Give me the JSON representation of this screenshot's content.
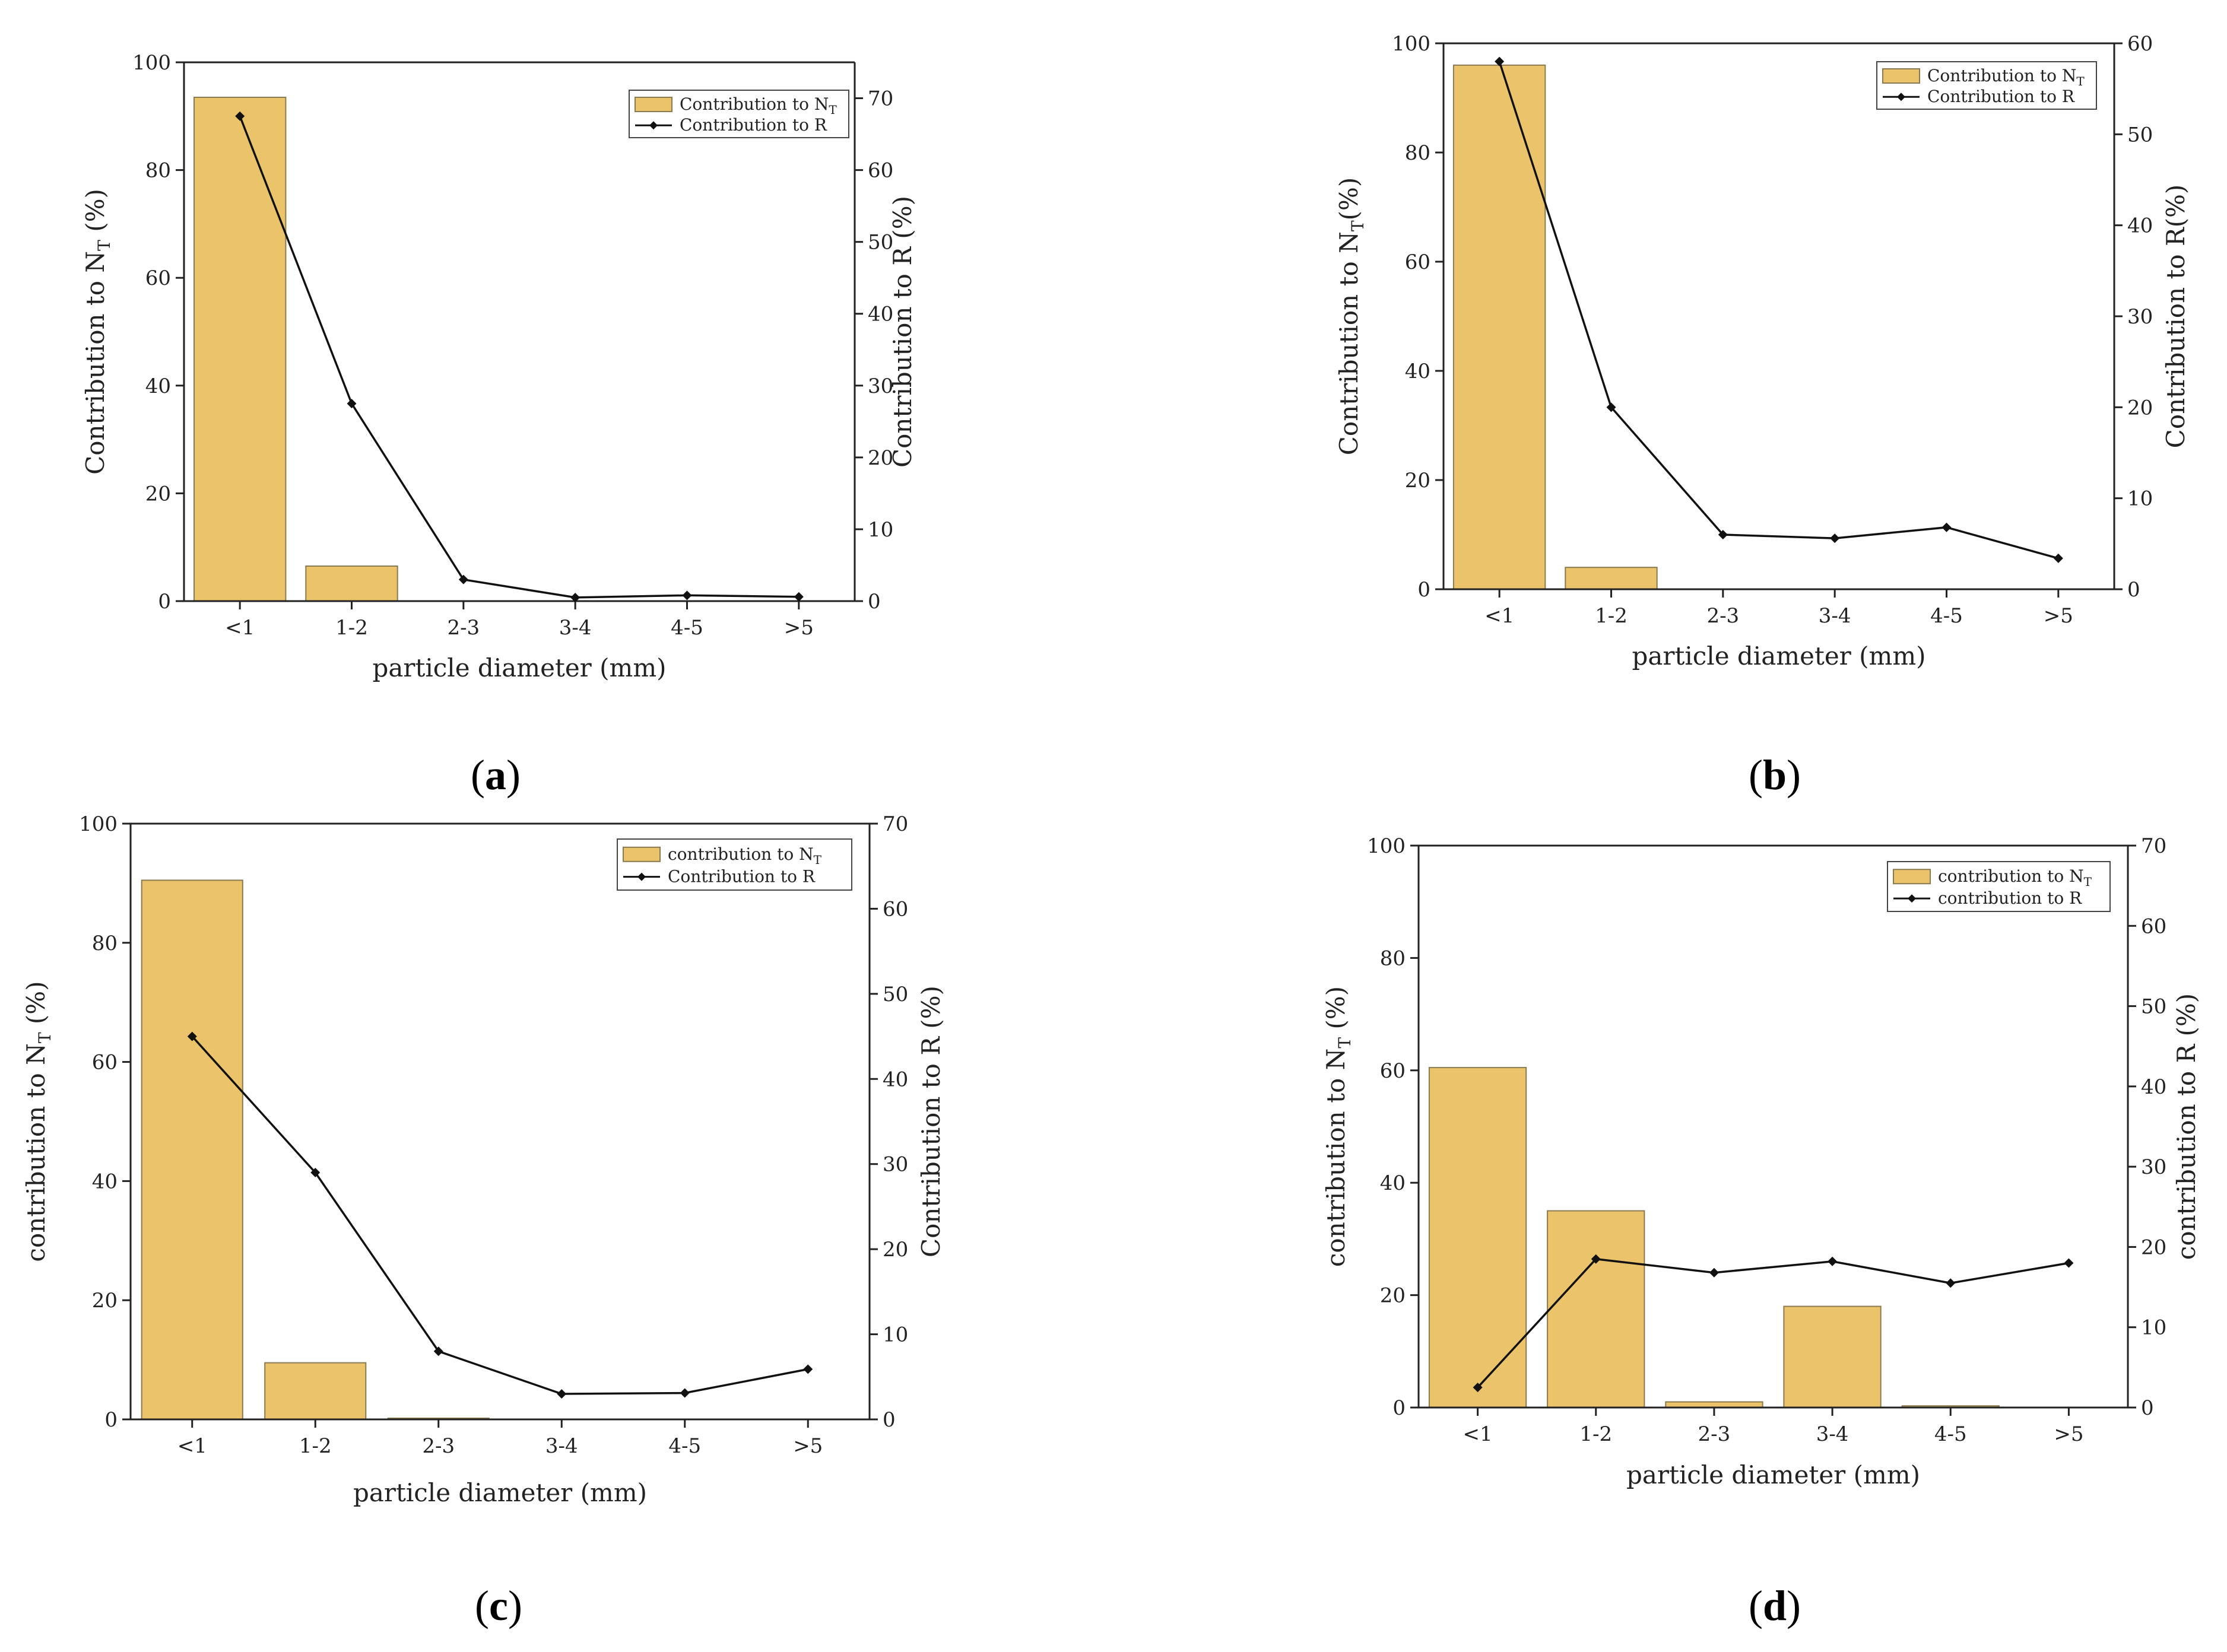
{
  "figure": {
    "panels": [
      "(a)",
      "(b)",
      "(c)",
      "(d)"
    ],
    "panel_letters": [
      "a",
      "b",
      "c",
      "d"
    ]
  },
  "colors": {
    "bar_fill": "#ebc36b",
    "bar_stroke": "#8a7a52",
    "line": "#111111",
    "axis": "#222222"
  },
  "chart_data": [
    {
      "id": "a",
      "type": "bar+line",
      "xlabel": "particle diameter (mm)",
      "ylabel_left": "Contribution to N",
      "ylabel_left_sub": "T",
      "ylabel_left_suffix": " (%)",
      "ylabel_right": "Contribution to R (%)",
      "categories": [
        "<1",
        "1-2",
        "2-3",
        "3-4",
        "4-5",
        ">5"
      ],
      "ylim_left": [
        0,
        100
      ],
      "yticks_left": [
        0,
        20,
        40,
        60,
        80,
        100
      ],
      "ylim_right": [
        0,
        75
      ],
      "yticks_right": [
        0,
        10,
        20,
        30,
        40,
        50,
        60,
        70
      ],
      "series": [
        {
          "name": "Contribution to N",
          "sub": "T",
          "kind": "bar",
          "axis": "left",
          "values": [
            93.5,
            6.5,
            0,
            0,
            0,
            0
          ]
        },
        {
          "name": "Contribution to R",
          "sub": "",
          "kind": "line",
          "axis": "right",
          "values": [
            67.5,
            27.5,
            3.0,
            0.5,
            0.8,
            0.6
          ]
        }
      ],
      "legend": {
        "position": "top-right",
        "entries": [
          [
            "Contribution to N",
            "T"
          ],
          [
            "Contribution to R",
            ""
          ]
        ]
      }
    },
    {
      "id": "b",
      "type": "bar+line",
      "xlabel": "particle diameter (mm)",
      "ylabel_left": "Contribution to N",
      "ylabel_left_sub": "T",
      "ylabel_left_suffix": "(%)",
      "ylabel_right": "Contribution to R(%)",
      "categories": [
        "<1",
        "1-2",
        "2-3",
        "3-4",
        "4-5",
        ">5"
      ],
      "ylim_left": [
        0,
        100
      ],
      "yticks_left": [
        0,
        20,
        40,
        60,
        80,
        100
      ],
      "ylim_right": [
        0,
        60
      ],
      "yticks_right": [
        0,
        10,
        20,
        30,
        40,
        50,
        60
      ],
      "series": [
        {
          "name": "Contribution to N",
          "sub": "T",
          "kind": "bar",
          "axis": "left",
          "values": [
            96.0,
            4.0,
            0,
            0,
            0,
            0
          ]
        },
        {
          "name": "Contribution to R",
          "sub": "",
          "kind": "line",
          "axis": "right",
          "values": [
            58.0,
            20.0,
            6.0,
            5.6,
            6.8,
            3.4
          ]
        }
      ],
      "legend": {
        "position": "top-right",
        "entries": [
          [
            "Contribution to N",
            "T"
          ],
          [
            "Contribution to R",
            ""
          ]
        ]
      }
    },
    {
      "id": "c",
      "type": "bar+line",
      "xlabel": "particle diameter (mm)",
      "ylabel_left": "contribution to N",
      "ylabel_left_sub": "T",
      "ylabel_left_suffix": " (%)",
      "ylabel_right": "Contribution to R (%)",
      "categories": [
        "<1",
        "1-2",
        "2-3",
        "3-4",
        "4-5",
        ">5"
      ],
      "ylim_left": [
        0,
        100
      ],
      "yticks_left": [
        0,
        20,
        40,
        60,
        80,
        100
      ],
      "ylim_right": [
        0,
        70
      ],
      "yticks_right": [
        0,
        10,
        20,
        30,
        40,
        50,
        60,
        70
      ],
      "series": [
        {
          "name": "contribution to N",
          "sub": "T",
          "kind": "bar",
          "axis": "left",
          "values": [
            90.5,
            9.5,
            0.2,
            0,
            0,
            0
          ]
        },
        {
          "name": "Contribution to R",
          "sub": "",
          "kind": "line",
          "axis": "right",
          "values": [
            45.0,
            29.0,
            8.0,
            3.0,
            3.1,
            5.9
          ]
        }
      ],
      "legend": {
        "position": "top-right",
        "entries": [
          [
            "contribution to N",
            "T"
          ],
          [
            "Contribution to R",
            ""
          ]
        ]
      }
    },
    {
      "id": "d",
      "type": "bar+line",
      "xlabel": "particle diameter (mm)",
      "ylabel_left": "contribution to N",
      "ylabel_left_sub": "T",
      "ylabel_left_suffix": " (%)",
      "ylabel_right": "contribution to R (%)",
      "categories": [
        "<1",
        "1-2",
        "2-3",
        "3-4",
        "4-5",
        ">5"
      ],
      "ylim_left": [
        0,
        100
      ],
      "yticks_left": [
        0,
        20,
        40,
        60,
        80,
        100
      ],
      "ylim_right": [
        0,
        70
      ],
      "yticks_right": [
        0,
        10,
        20,
        30,
        40,
        50,
        60,
        70
      ],
      "series": [
        {
          "name": "contribution to N",
          "sub": "T",
          "kind": "bar",
          "axis": "left",
          "values": [
            60.5,
            35.0,
            1.0,
            18.0,
            0.3,
            0
          ]
        },
        {
          "name": "contribution to R",
          "sub": "",
          "kind": "line",
          "axis": "right",
          "values": [
            2.5,
            18.5,
            16.8,
            18.2,
            15.5,
            18.0
          ]
        }
      ],
      "legend": {
        "position": "top-right",
        "entries": [
          [
            "contribution to N",
            "T"
          ],
          [
            "contribution to R",
            ""
          ]
        ]
      }
    }
  ]
}
